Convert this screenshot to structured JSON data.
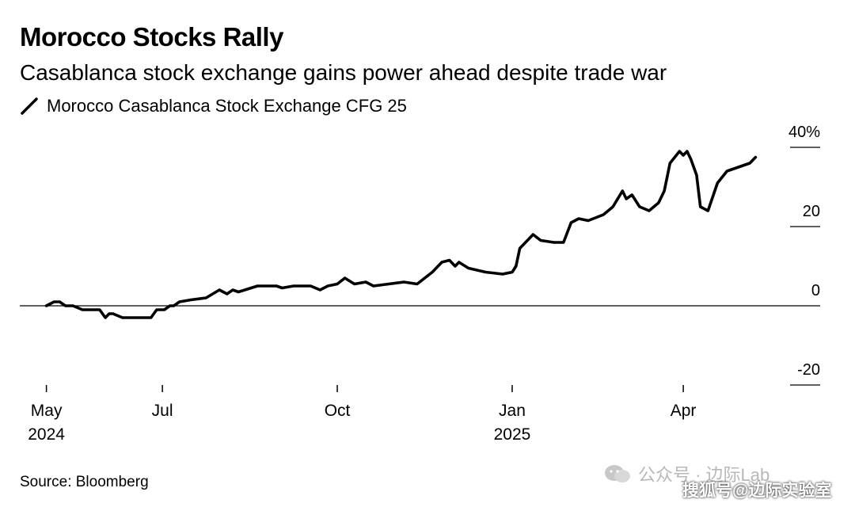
{
  "header": {
    "title": "Morocco Stocks Rally",
    "subtitle": "Casablanca stock exchange gains power ahead despite trade war"
  },
  "source": "Source: Bloomberg",
  "watermarks": {
    "line1": "公众号 · 边际Lab",
    "line2": "搜狐号@边际实验室"
  },
  "colors": {
    "series": "#000000",
    "axis": "#000000",
    "watermark": "#b8b8b8"
  },
  "chart_data": {
    "type": "line",
    "title": "Morocco Stocks Rally",
    "subtitle": "Casablanca stock exchange gains power ahead despite trade war",
    "xlabel": "",
    "ylabel": "",
    "xlim": [
      "2024-04-17",
      "2025-06-12"
    ],
    "ylim": [
      -20,
      40
    ],
    "y_ticks": [
      {
        "value": 40,
        "label": "40%"
      },
      {
        "value": 20,
        "label": "20"
      },
      {
        "value": 0,
        "label": "0"
      },
      {
        "value": -20,
        "label": "-20"
      }
    ],
    "x_ticks": [
      {
        "date": "2024-05-01",
        "label": "May",
        "sublabel": "2024"
      },
      {
        "date": "2024-07-01",
        "label": "Jul",
        "sublabel": ""
      },
      {
        "date": "2024-10-01",
        "label": "Oct",
        "sublabel": ""
      },
      {
        "date": "2025-01-01",
        "label": "Jan",
        "sublabel": "2025"
      },
      {
        "date": "2025-04-01",
        "label": "Apr",
        "sublabel": ""
      }
    ],
    "grid": false,
    "legend_position": "top-left",
    "series": [
      {
        "name": "Morocco Casablanca Stock Exchange CFG 25",
        "x": [
          "2024-05-01",
          "2024-05-05",
          "2024-05-08",
          "2024-05-11",
          "2024-05-15",
          "2024-05-20",
          "2024-05-25",
          "2024-05-29",
          "2024-06-01",
          "2024-06-03",
          "2024-06-05",
          "2024-06-10",
          "2024-06-18",
          "2024-06-25",
          "2024-06-28",
          "2024-07-01",
          "2024-07-02",
          "2024-07-05",
          "2024-07-07",
          "2024-07-10",
          "2024-07-16",
          "2024-07-24",
          "2024-07-31",
          "2024-08-04",
          "2024-08-07",
          "2024-08-10",
          "2024-08-20",
          "2024-08-30",
          "2024-09-02",
          "2024-09-08",
          "2024-09-17",
          "2024-09-22",
          "2024-09-26",
          "2024-10-01",
          "2024-10-05",
          "2024-10-10",
          "2024-10-16",
          "2024-10-20",
          "2024-10-28",
          "2024-11-05",
          "2024-11-12",
          "2024-11-20",
          "2024-11-25",
          "2024-11-29",
          "2024-12-02",
          "2024-12-04",
          "2024-12-09",
          "2024-12-18",
          "2024-12-27",
          "2025-01-01",
          "2025-01-03",
          "2025-01-05",
          "2025-01-07",
          "2025-01-12",
          "2025-01-16",
          "2025-01-23",
          "2025-01-28",
          "2025-02-01",
          "2025-02-05",
          "2025-02-10",
          "2025-02-18",
          "2025-02-23",
          "2025-02-28",
          "2025-03-02",
          "2025-03-05",
          "2025-03-09",
          "2025-03-14",
          "2025-03-19",
          "2025-03-22",
          "2025-03-25",
          "2025-03-30",
          "2025-04-01",
          "2025-04-03",
          "2025-04-05",
          "2025-04-08",
          "2025-04-10",
          "2025-04-14",
          "2025-04-19",
          "2025-04-24",
          "2025-04-30",
          "2025-05-06",
          "2025-05-09"
        ],
        "y": [
          0,
          1,
          1,
          0,
          0,
          -1,
          -1,
          -1,
          -3,
          -2,
          -2,
          -3,
          -3,
          -3,
          -1,
          -1,
          -1,
          0,
          0,
          1,
          1.5,
          2,
          4,
          3,
          4,
          3.5,
          5,
          5,
          4.5,
          5,
          5,
          4,
          5,
          5.5,
          7,
          5.5,
          6,
          5,
          5.5,
          6,
          5.5,
          8.5,
          11,
          11.5,
          10,
          11,
          9.5,
          8.5,
          8,
          8.5,
          10,
          14.5,
          15.5,
          18,
          16.5,
          16,
          16,
          21,
          22,
          21.5,
          23,
          25,
          29,
          27,
          28,
          25,
          24,
          26,
          29,
          36,
          39,
          38,
          39,
          37,
          33,
          25,
          24,
          31,
          34,
          35,
          36,
          37.5
        ]
      }
    ]
  }
}
